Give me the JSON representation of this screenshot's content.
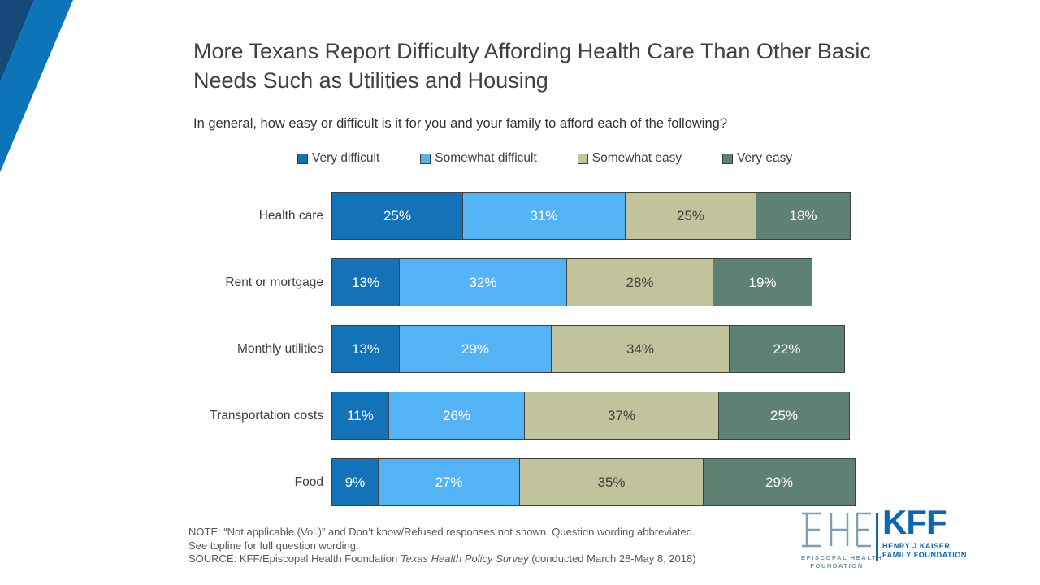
{
  "slide": {
    "title": "More Texans Report Difficulty Affording Health Care Than Other Basic Needs Such as Utilities and Housing",
    "subtitle": "In general, how easy or difficult is it for you and your family to afford each of the following?"
  },
  "chart_data": {
    "type": "bar",
    "orientation": "horizontal-stacked",
    "title": "More Texans Report Difficulty Affording Health Care Than Other Basic Needs Such as Utilities and Housing",
    "categories": [
      "Health care",
      "Rent or mortgage",
      "Monthly utilities",
      "Transportation costs",
      "Food"
    ],
    "series": [
      {
        "name": "Very difficult",
        "color": "#1372B8",
        "text_color": "#ffffff",
        "values": [
          25,
          13,
          13,
          11,
          9
        ]
      },
      {
        "name": "Somewhat difficult",
        "color": "#53B3F4",
        "text_color": "#ffffff",
        "values": [
          31,
          32,
          29,
          26,
          27
        ]
      },
      {
        "name": "Somewhat easy",
        "color": "#C0C39B",
        "text_color": "#404040",
        "values": [
          25,
          28,
          34,
          37,
          35
        ]
      },
      {
        "name": "Very easy",
        "color": "#5F8173",
        "text_color": "#ffffff",
        "values": [
          18,
          19,
          22,
          25,
          29
        ]
      }
    ],
    "value_suffix": "%",
    "xlim": [
      0,
      100
    ],
    "legend_position": "top",
    "grid": false
  },
  "footnote": {
    "line1": "NOTE: “Not applicable (Vol.)” and Don’t know/Refused responses not shown. Question wording abbreviated.",
    "line2": "See topline for full question wording.",
    "source_prefix": "SOURCE: KFF/Episcopal Health Foundation ",
    "source_italic": "Texas Health Policy Survey",
    "source_suffix": " (conducted March 28-May 8, 2018)"
  },
  "logos": {
    "ehf_caption_line1": "EPISCOPAL HEALTH",
    "ehf_caption_line2": "FOUNDATION",
    "kff_text": "KFF",
    "kff_caption_line1": "HENRY J KAISER",
    "kff_caption_line2": "FAMILY FOUNDATION",
    "brand_blue": "#0C66B0",
    "corner_blue": "#0E74BA",
    "corner_navy": "#15497A"
  }
}
